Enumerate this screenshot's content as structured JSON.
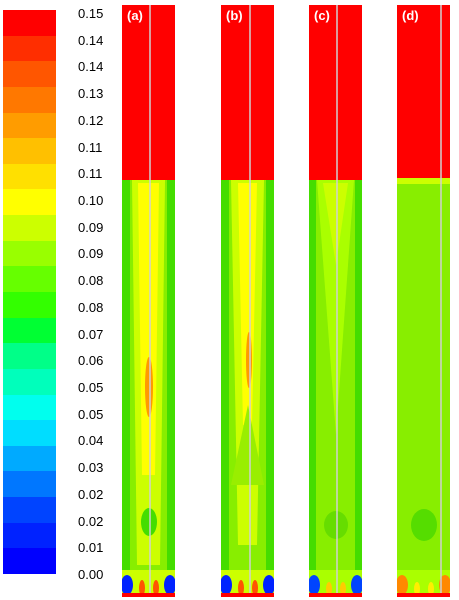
{
  "legend": {
    "labels": [
      "0.15",
      "0.14",
      "0.14",
      "0.13",
      "0.12",
      "0.11",
      "0.11",
      "0.10",
      "0.09",
      "0.09",
      "0.08",
      "0.08",
      "0.07",
      "0.06",
      "0.05",
      "0.05",
      "0.04",
      "0.03",
      "0.02",
      "0.02",
      "0.01",
      "0.00"
    ],
    "colors": [
      "#ff0000",
      "#ff2e00",
      "#ff5600",
      "#ff7800",
      "#ff9c00",
      "#ffc000",
      "#ffe000",
      "#ffff00",
      "#ccff00",
      "#99ff00",
      "#66ff00",
      "#33ff00",
      "#00ff33",
      "#00ff88",
      "#00ffbb",
      "#00ffee",
      "#00ddff",
      "#00aaff",
      "#0077ff",
      "#0044ff",
      "#0022ff",
      "#0000ff"
    ]
  },
  "panels": [
    {
      "id": "a",
      "label": "(a)"
    },
    {
      "id": "b",
      "label": "(b)"
    },
    {
      "id": "c",
      "label": "(c)"
    },
    {
      "id": "d",
      "label": "(d)"
    }
  ],
  "colors": {
    "top_region": "#ff0000",
    "bulk": "#88ee00",
    "yellow_core": "#ffff00",
    "green_edge": "#22dd00",
    "centerline": "#d0d0d0"
  }
}
